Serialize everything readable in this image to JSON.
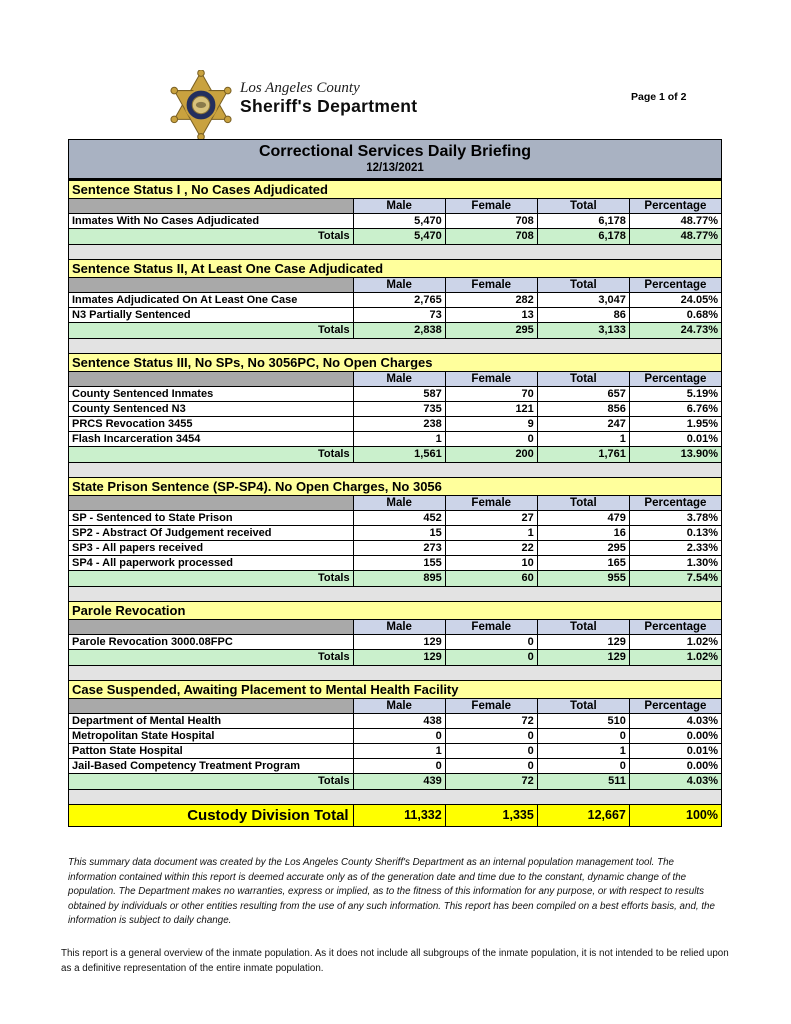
{
  "page_indicator": "Page 1 of 2",
  "logo": {
    "county_line": "Los Angeles County",
    "department_line": "Sheriff's Department"
  },
  "report": {
    "title": "Correctional Services Daily Briefing",
    "date": "12/13/2021",
    "columns": [
      "Male",
      "Female",
      "Total",
      "Percentage"
    ],
    "totals_label": "Totals",
    "sections": [
      {
        "title": "Sentence Status I , No Cases Adjudicated",
        "rows": [
          {
            "label": "Inmates With No Cases Adjudicated",
            "values": [
              "5,470",
              "708",
              "6,178",
              "48.77%"
            ]
          }
        ],
        "totals": [
          "5,470",
          "708",
          "6,178",
          "48.77%"
        ]
      },
      {
        "title": "Sentence Status II, At Least One Case Adjudicated",
        "rows": [
          {
            "label": "Inmates Adjudicated On At Least One Case",
            "values": [
              "2,765",
              "282",
              "3,047",
              "24.05%"
            ]
          },
          {
            "label": "N3 Partially Sentenced",
            "values": [
              "73",
              "13",
              "86",
              "0.68%"
            ]
          }
        ],
        "totals": [
          "2,838",
          "295",
          "3,133",
          "24.73%"
        ]
      },
      {
        "title": "Sentence Status III, No SPs, No 3056PC, No Open Charges",
        "rows": [
          {
            "label": "County Sentenced Inmates",
            "values": [
              "587",
              "70",
              "657",
              "5.19%"
            ]
          },
          {
            "label": "County Sentenced N3",
            "values": [
              "735",
              "121",
              "856",
              "6.76%"
            ]
          },
          {
            "label": "PRCS Revocation 3455",
            "values": [
              "238",
              "9",
              "247",
              "1.95%"
            ]
          },
          {
            "label": "Flash Incarceration 3454",
            "values": [
              "1",
              "0",
              "1",
              "0.01%"
            ]
          }
        ],
        "totals": [
          "1,561",
          "200",
          "1,761",
          "13.90%"
        ]
      },
      {
        "title": "State Prison Sentence (SP-SP4). No Open Charges, No 3056",
        "rows": [
          {
            "label": "SP - Sentenced to State Prison",
            "values": [
              "452",
              "27",
              "479",
              "3.78%"
            ]
          },
          {
            "label": "SP2 - Abstract Of Judgement received",
            "values": [
              "15",
              "1",
              "16",
              "0.13%"
            ]
          },
          {
            "label": "SP3 - All papers received",
            "values": [
              "273",
              "22",
              "295",
              "2.33%"
            ]
          },
          {
            "label": "SP4 - All paperwork processed",
            "values": [
              "155",
              "10",
              "165",
              "1.30%"
            ]
          }
        ],
        "totals": [
          "895",
          "60",
          "955",
          "7.54%"
        ]
      },
      {
        "title": "Parole Revocation",
        "rows": [
          {
            "label": "Parole Revocation 3000.08FPC",
            "values": [
              "129",
              "0",
              "129",
              "1.02%"
            ]
          }
        ],
        "totals": [
          "129",
          "0",
          "129",
          "1.02%"
        ]
      },
      {
        "title": "Case Suspended, Awaiting Placement to Mental Health Facility",
        "rows": [
          {
            "label": "Department of Mental Health",
            "values": [
              "438",
              "72",
              "510",
              "4.03%"
            ]
          },
          {
            "label": "Metropolitan State Hospital",
            "values": [
              "0",
              "0",
              "0",
              "0.00%"
            ]
          },
          {
            "label": "Patton State Hospital",
            "values": [
              "1",
              "0",
              "1",
              "0.01%"
            ]
          },
          {
            "label": "Jail-Based Competency Treatment Program",
            "values": [
              "0",
              "0",
              "0",
              "0.00%"
            ]
          }
        ],
        "totals": [
          "439",
          "72",
          "511",
          "4.03%"
        ]
      }
    ],
    "grand_total": {
      "label": "Custody Division Total",
      "values": [
        "11,332",
        "1,335",
        "12,667",
        "100%"
      ]
    }
  },
  "footnotes": {
    "disclaimer": "This summary data document was created by the Los Angeles County Sheriff's Department as an internal population management tool.  The information contained within this report is deemed accurate only as of the generation date and time due to the constant, dynamic change of the population.  The Department makes no warranties, express or implied, as to the fitness of this information for any purpose, or with respect to results obtained by individuals or other entities resulting from the use of any such information.  This report has been compiled on a best efforts basis, and, the information is subject to daily change.",
    "note": "This report is a general overview of the inmate population.  As it does not include all subgroups of the inmate population, it is not intended to be relied upon as a definitive representation of the entire inmate population."
  },
  "colors": {
    "title_band": "#a9b2c2",
    "section_header": "#ffff9c",
    "column_header": "#ccd4e8",
    "column_header_spacer": "#a9a9a9",
    "totals_row": "#caf0cc",
    "grand_total_row": "#ffff00",
    "section_gap": "#e3e3e3",
    "badge_gold": "#c9a23f",
    "badge_navy": "#232f5e"
  }
}
